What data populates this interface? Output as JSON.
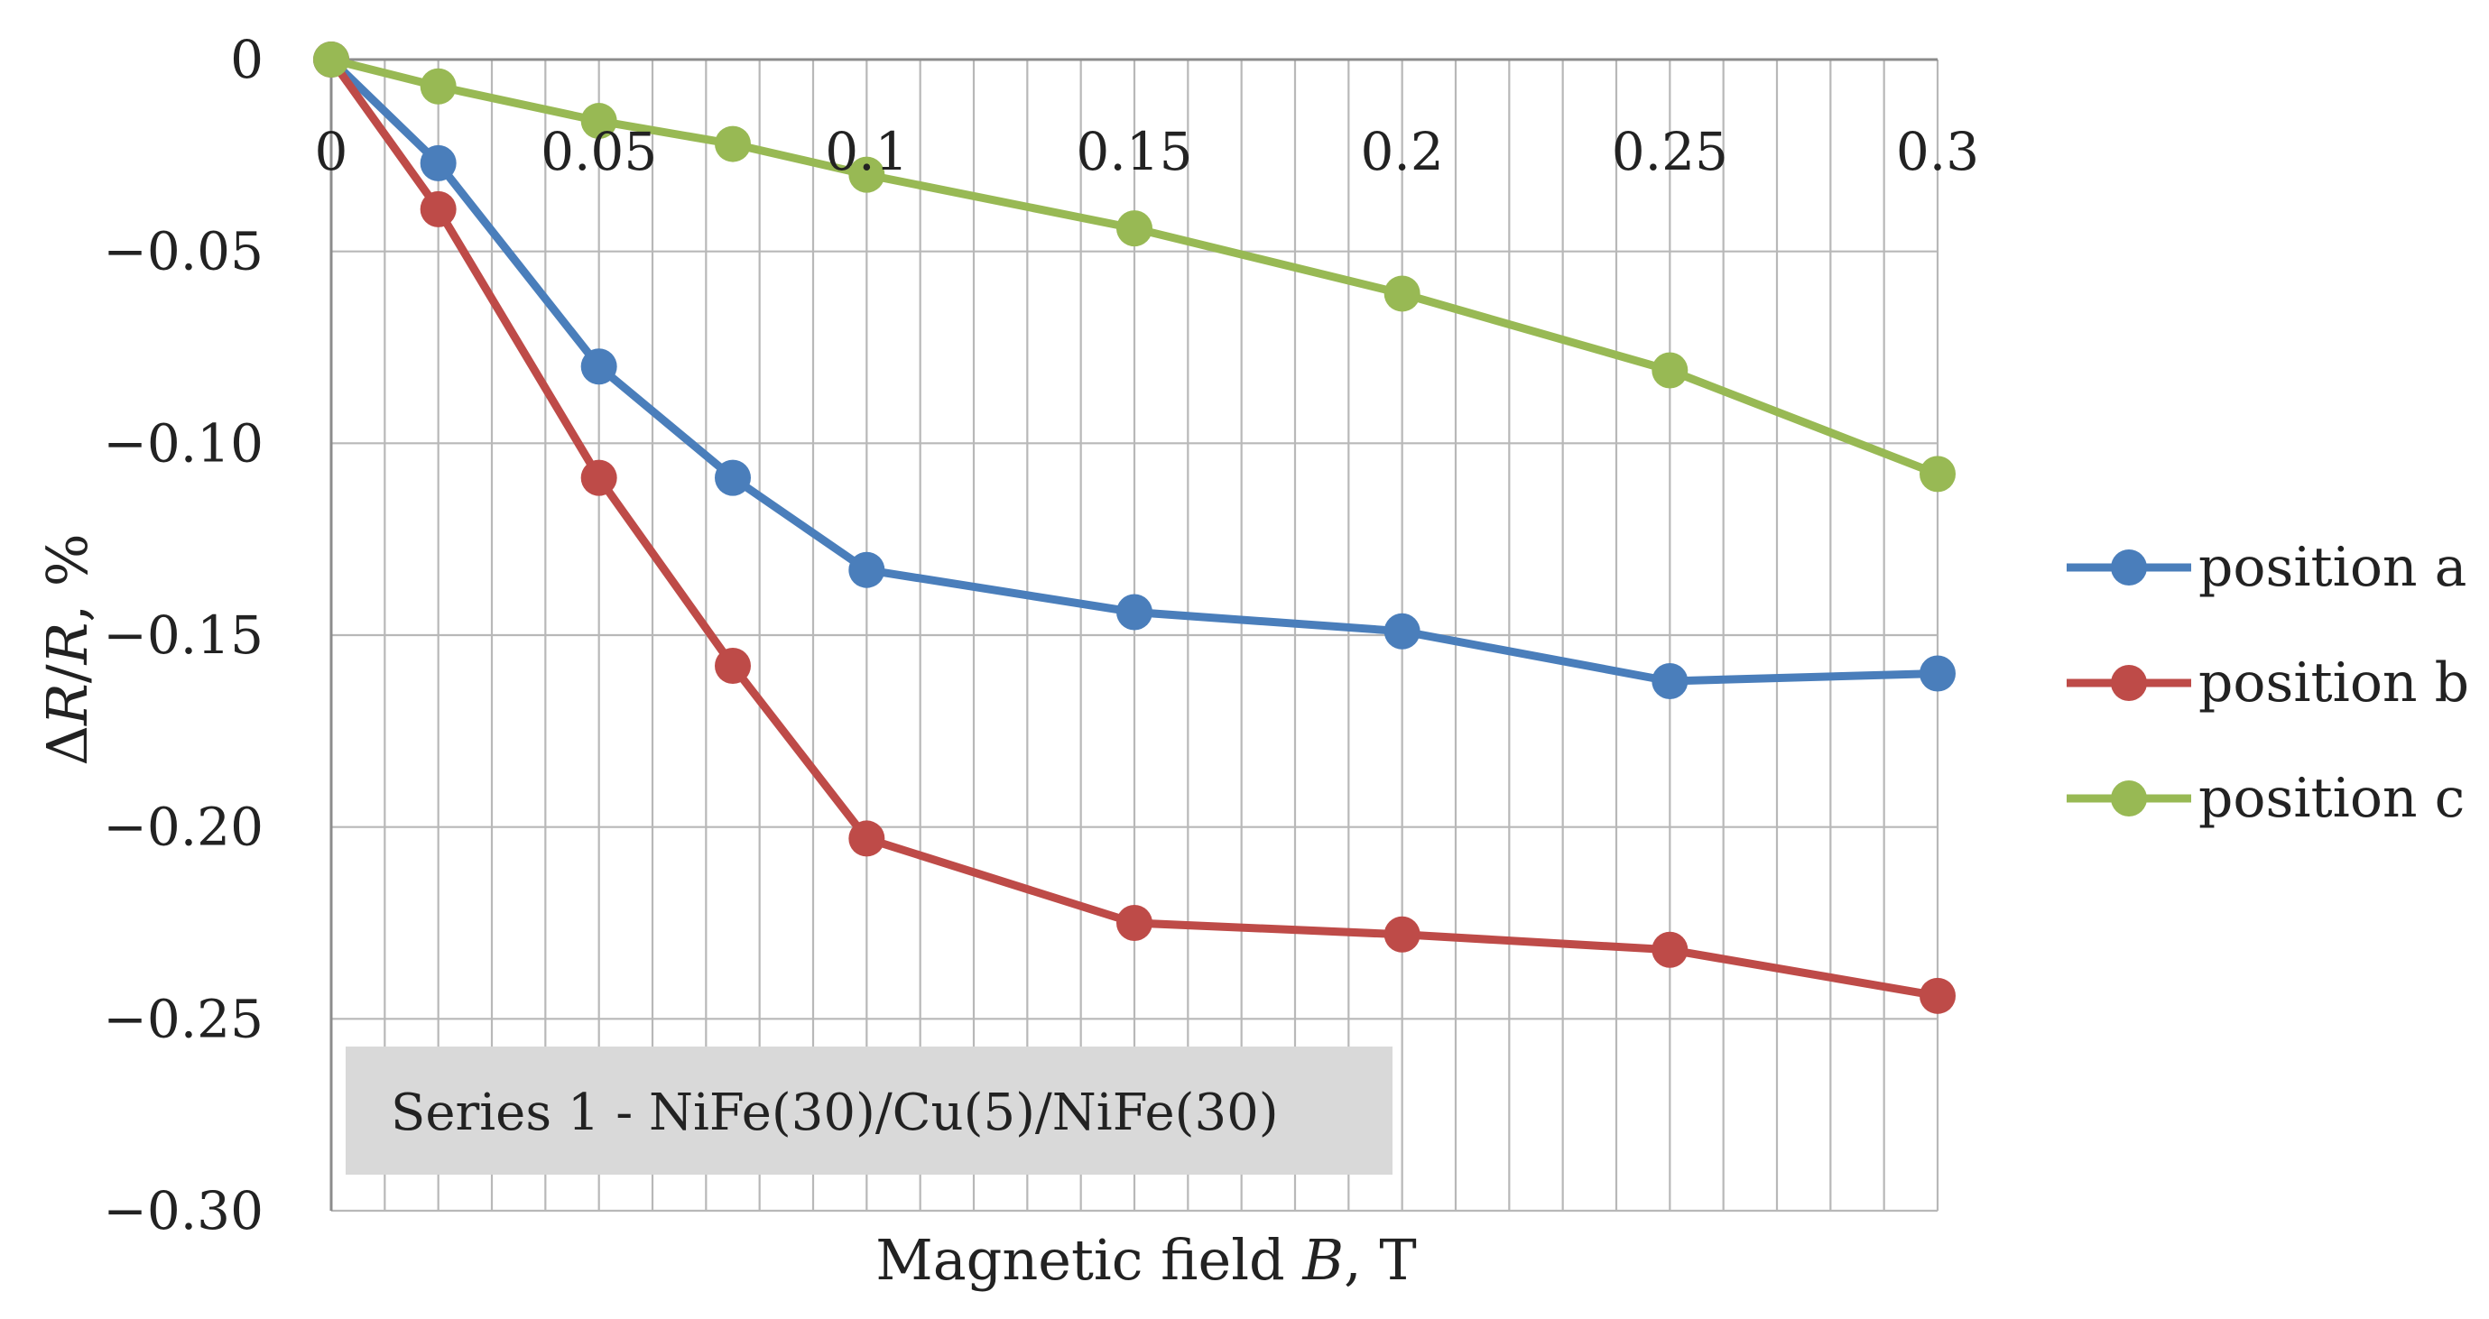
{
  "chart_data": {
    "type": "line",
    "title": "",
    "xlabel": "Magnetic field B, T",
    "xlabel_parts": {
      "prefix": "Magnetic field ",
      "italic": "B",
      "suffix": ", T"
    },
    "ylabel": "ΔR/R, %",
    "ylabel_parts": {
      "delta": "Δ",
      "r1": "R",
      "slash": "/",
      "r2": "R",
      "suffix": ", %"
    },
    "xlim": [
      0,
      0.3
    ],
    "ylim": [
      -0.3,
      0
    ],
    "x_ticks": [
      0,
      0.05,
      0.1,
      0.15,
      0.2,
      0.25,
      0.3
    ],
    "x_tick_labels": [
      "0",
      "0.05",
      "0.1",
      "0.15",
      "0.2",
      "0.25",
      "0.3"
    ],
    "x_minor_step": 0.01,
    "y_ticks": [
      0,
      -0.05,
      -0.1,
      -0.15,
      -0.2,
      -0.25,
      -0.3
    ],
    "y_tick_labels": [
      "0",
      "−0.05",
      "−0.10",
      "−0.15",
      "−0.20",
      "−0.25",
      "−0.30"
    ],
    "grid": true,
    "legend_position": "right",
    "annotation": "Series 1 - NiFe(30)/Cu(5)/NiFe(30)",
    "annotation_position": "bottom-left",
    "x": [
      0,
      0.02,
      0.05,
      0.075,
      0.1,
      0.15,
      0.2,
      0.25,
      0.3
    ],
    "series": [
      {
        "name": "position a",
        "color": "#4a7ebb",
        "values": [
          0,
          -0.027,
          -0.08,
          -0.109,
          -0.133,
          -0.144,
          -0.149,
          -0.162,
          -0.16
        ]
      },
      {
        "name": "position b",
        "color": "#be4b48",
        "values": [
          0,
          -0.039,
          -0.109,
          -0.158,
          -0.203,
          -0.225,
          -0.228,
          -0.232,
          -0.244
        ]
      },
      {
        "name": "position c",
        "color": "#98b954",
        "values": [
          0,
          -0.007,
          -0.016,
          -0.022,
          -0.03,
          -0.044,
          -0.061,
          -0.081,
          -0.108
        ]
      }
    ]
  }
}
